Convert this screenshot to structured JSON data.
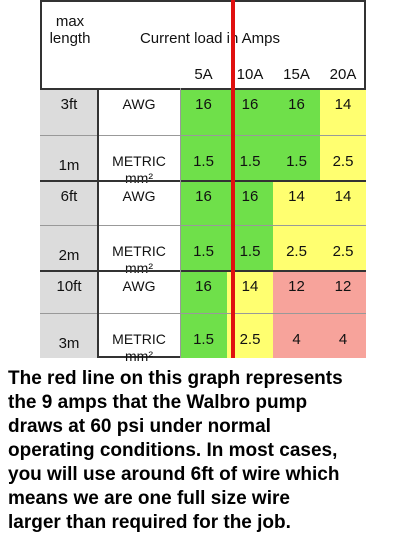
{
  "table": {
    "corner": [
      "max",
      "length"
    ],
    "title": "Current load in Amps",
    "columns": [
      "5A",
      "10A",
      "15A",
      "20A"
    ],
    "rows": [
      {
        "length": "3ft",
        "unit": [
          "AWG"
        ],
        "values": [
          16,
          16,
          16,
          14
        ]
      },
      {
        "length": "1m",
        "unit": [
          "METRIC",
          "mm²"
        ],
        "values": [
          1.5,
          1.5,
          1.5,
          2.5
        ]
      },
      {
        "length": "6ft",
        "unit": [
          "AWG"
        ],
        "values": [
          16,
          16,
          14,
          14
        ]
      },
      {
        "length": "2m",
        "unit": [
          "METRIC",
          "mm²"
        ],
        "values": [
          1.5,
          1.5,
          2.5,
          2.5
        ]
      },
      {
        "length": "10ft",
        "unit": [
          "AWG"
        ],
        "values": [
          16,
          14,
          12,
          12
        ]
      },
      {
        "length": "3m",
        "unit": [
          "METRIC",
          "mm²"
        ],
        "values": [
          1.5,
          2.5,
          4,
          4
        ]
      }
    ]
  },
  "caption": [
    "The red line on this graph represents",
    "the 9 amps that the Walbro pump",
    "draws at 60 psi under normal",
    "operating conditions. In most cases,",
    "you will use around 6ft of wire which",
    "means we are one full size wire",
    "larger than required for the job."
  ]
}
